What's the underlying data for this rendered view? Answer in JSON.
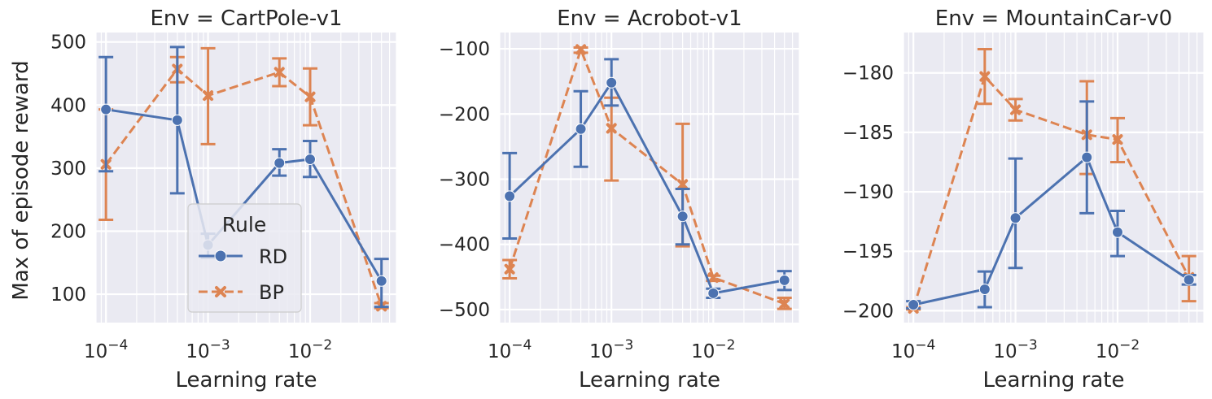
{
  "figure": {
    "ylabel": "Max of episode reward",
    "xlabel": "Learning rate"
  },
  "legend": {
    "title": "Rule",
    "entries": [
      {
        "label": "RD",
        "color": "#4c72b0",
        "marker": "circle",
        "dash": "solid"
      },
      {
        "label": "BP",
        "color": "#dd8452",
        "marker": "x",
        "dash": "dashed"
      }
    ]
  },
  "chart_data": [
    {
      "type": "line",
      "title": "Env = CartPole-v1",
      "xlabel": "Learning rate",
      "ylabel": "Max of episode reward",
      "xscale": "log",
      "xlim": [
        8e-05,
        0.07
      ],
      "ylim": [
        55,
        515
      ],
      "yticks": [
        100,
        200,
        300,
        400,
        500
      ],
      "grid": true,
      "x": [
        0.0001,
        0.0005,
        0.001,
        0.005,
        0.01,
        0.05
      ],
      "series": [
        {
          "name": "RD",
          "values": [
            393,
            376,
            178,
            308,
            314,
            121
          ],
          "lower": [
            295,
            260,
            158,
            288,
            286,
            80
          ],
          "upper": [
            476,
            492,
            196,
            330,
            343,
            156
          ]
        },
        {
          "name": "BP",
          "values": [
            306,
            457,
            415,
            452,
            413,
            81
          ],
          "lower": [
            218,
            436,
            338,
            430,
            368,
            78
          ],
          "upper": [
            393,
            476,
            490,
            474,
            458,
            86
          ]
        }
      ]
    },
    {
      "type": "line",
      "title": "Env = Acrobot-v1",
      "xlabel": "Learning rate",
      "ylabel": "",
      "xscale": "log",
      "xlim": [
        8e-05,
        0.07
      ],
      "ylim": [
        -520,
        -75
      ],
      "yticks": [
        -500,
        -400,
        -300,
        -200,
        -100
      ],
      "grid": true,
      "x": [
        0.0001,
        0.0005,
        0.001,
        0.005,
        0.01,
        0.05
      ],
      "series": [
        {
          "name": "RD",
          "values": [
            -326,
            -223,
            -152,
            -357,
            -475,
            -455
          ],
          "lower": [
            -391,
            -281,
            -187,
            -400,
            -482,
            -470
          ],
          "upper": [
            -260,
            -165,
            -116,
            -315,
            -468,
            -441
          ]
        },
        {
          "name": "BP",
          "values": [
            -438,
            -101,
            -222,
            -308,
            -451,
            -491
          ],
          "lower": [
            -452,
            -106,
            -302,
            -403,
            -456,
            -499
          ],
          "upper": [
            -424,
            -98,
            -175,
            -215,
            -448,
            -482
          ]
        }
      ]
    },
    {
      "type": "line",
      "title": "Env = MountainCar-v0",
      "xlabel": "Learning rate",
      "ylabel": "",
      "xscale": "log",
      "xlim": [
        8e-05,
        0.07
      ],
      "ylim": [
        -201,
        -176.6
      ],
      "yticks": [
        -200,
        -195,
        -190,
        -185,
        -180
      ],
      "grid": true,
      "x": [
        0.0001,
        0.0005,
        0.001,
        0.005,
        0.01,
        0.05
      ],
      "series": [
        {
          "name": "RD",
          "values": [
            -199.5,
            -198.2,
            -192.2,
            -187.1,
            -193.4,
            -197.4
          ],
          "lower": [
            -199.8,
            -199.7,
            -196.4,
            -191.8,
            -195.4,
            -197.8
          ],
          "upper": [
            -199.2,
            -196.7,
            -187.2,
            -182.4,
            -191.6,
            -197.0
          ]
        },
        {
          "name": "BP",
          "values": [
            -199.8,
            -180.3,
            -183.1,
            -185.2,
            -185.6,
            -197.2
          ],
          "lower": [
            -199.9,
            -182.6,
            -184.0,
            -188.5,
            -187.5,
            -199.2
          ],
          "upper": [
            -199.7,
            -178.0,
            -182.2,
            -180.7,
            -183.8,
            -195.4
          ]
        }
      ]
    }
  ]
}
